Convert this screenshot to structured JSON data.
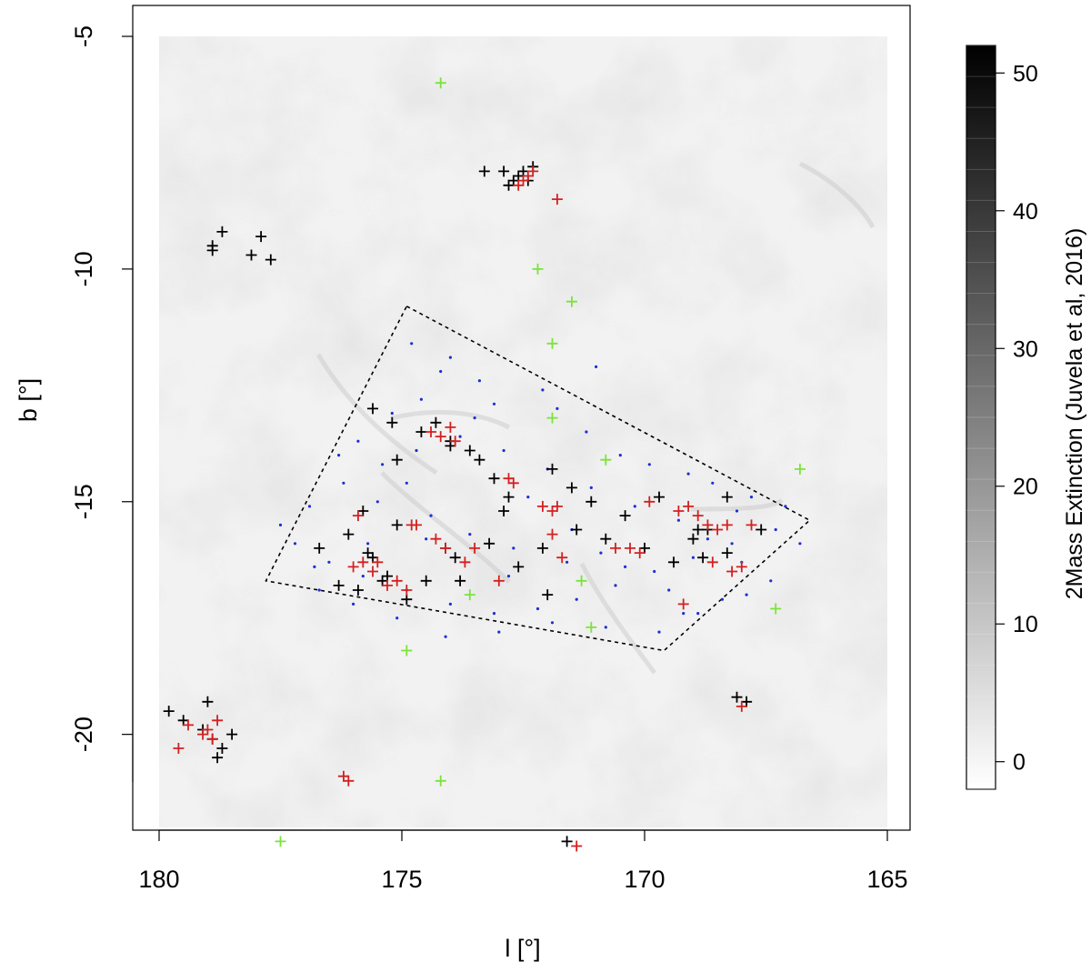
{
  "chart_data": {
    "type": "scatter",
    "title": "",
    "xlabel": "l [°]",
    "ylabel": "b [°]",
    "xlim": [
      180.0,
      165.0
    ],
    "ylim": [
      -22.0,
      -5.0
    ],
    "x_ticks": [
      "180",
      "175",
      "170",
      "165"
    ],
    "x_tick_values": [
      180,
      175,
      170,
      165
    ],
    "y_ticks": [
      "-5",
      "-10",
      "-15",
      "-20"
    ],
    "y_tick_values": [
      -5,
      -10,
      -15,
      -20
    ],
    "x_reversed": true,
    "grid": false,
    "background": "2MASS extinction map, greyscale",
    "colorbar": {
      "label": "2Mass Extinction (Juvela et al, 2016)",
      "ticks": [
        "0",
        "10",
        "20",
        "30",
        "40",
        "50"
      ],
      "tick_values": [
        0,
        10,
        20,
        30,
        40,
        50
      ],
      "range": [
        -2,
        52
      ],
      "colors": {
        "low": "#ffffff",
        "high": "#000000"
      }
    },
    "region": {
      "style": "dotted",
      "color": "#000000",
      "vertices": [
        [
          174.9,
          -10.8
        ],
        [
          166.6,
          -15.4
        ],
        [
          169.6,
          -18.2
        ],
        [
          177.8,
          -16.7
        ]
      ]
    },
    "series": [
      {
        "marker": "dot",
        "color": "#1f2fd1",
        "x": [
          174.8,
          174.0,
          173.4,
          174.6,
          175.2,
          175.9,
          172.1,
          171.8,
          171.2,
          170.5,
          169.9,
          169.1,
          168.6,
          167.8,
          167.1,
          167.3,
          168.2,
          169.0,
          169.8,
          170.6,
          171.4,
          172.2,
          173.1,
          174.0,
          174.9,
          175.8,
          176.5,
          177.2,
          177.5,
          176.9,
          176.2,
          175.4,
          174.7,
          173.8,
          172.9,
          172.0,
          171.1,
          170.2,
          169.3,
          168.7,
          168.0,
          167.4,
          166.8,
          167.9,
          168.9,
          169.7,
          170.8,
          171.9,
          173.0,
          174.1,
          175.1,
          176.0,
          176.7,
          175.5,
          174.4,
          173.6,
          172.7,
          171.6,
          170.4,
          169.5,
          168.4,
          174.2,
          173.1,
          172.4,
          171.5,
          170.9,
          174.9,
          176.3,
          175.7,
          172.8,
          169.2,
          168.1,
          173.5,
          171.0,
          176.8,
          174.5
        ],
        "y": [
          -11.6,
          -11.9,
          -12.4,
          -12.8,
          -13.1,
          -13.7,
          -12.6,
          -13.0,
          -13.5,
          -14.0,
          -14.2,
          -14.4,
          -14.6,
          -14.9,
          -15.1,
          -15.6,
          -15.9,
          -16.2,
          -16.5,
          -16.8,
          -17.1,
          -17.3,
          -17.4,
          -17.2,
          -16.9,
          -16.6,
          -16.3,
          -15.9,
          -15.5,
          -15.1,
          -14.6,
          -14.2,
          -13.9,
          -13.6,
          -13.9,
          -14.3,
          -14.7,
          -15.1,
          -15.4,
          -15.8,
          -16.3,
          -16.7,
          -15.9,
          -17.0,
          -17.4,
          -17.8,
          -17.7,
          -17.6,
          -17.8,
          -17.9,
          -17.5,
          -17.2,
          -16.9,
          -15.0,
          -15.3,
          -15.7,
          -16.0,
          -16.3,
          -16.4,
          -16.9,
          -17.1,
          -12.2,
          -12.9,
          -14.9,
          -15.6,
          -16.1,
          -14.6,
          -14.0,
          -15.9,
          -16.6,
          -17.4,
          -15.2,
          -13.2,
          -12.1,
          -16.4,
          -15.8
        ],
        "name": ""
      },
      {
        "marker": "plus",
        "color": "#000000",
        "x": [
          178.9,
          178.7,
          178.9,
          178.1,
          177.9,
          177.7,
          172.9,
          172.8,
          172.7,
          172.6,
          172.5,
          172.4,
          173.3,
          172.3,
          179.8,
          179.5,
          179.1,
          178.9,
          178.7,
          178.5,
          179.0,
          178.8,
          168.1,
          167.9,
          171.6,
          175.6,
          175.2,
          174.6,
          174.3,
          174.0,
          173.6,
          173.4,
          175.8,
          175.1,
          172.8,
          171.9,
          171.1,
          170.4,
          169.7,
          168.9,
          168.3,
          167.6,
          176.3,
          176.1,
          175.7,
          175.3,
          174.9,
          174.5,
          173.9,
          173.2,
          172.6,
          172.1,
          171.4,
          170.8,
          170.0,
          169.4,
          168.8,
          168.3,
          175.9,
          175.6,
          175.4,
          176.7,
          174.1,
          173.8,
          172.0,
          171.5,
          173.1,
          172.9,
          169.0,
          168.7,
          175.1,
          174.0
        ],
        "y": [
          -9.6,
          -9.2,
          -9.5,
          -9.7,
          -9.3,
          -9.8,
          -7.9,
          -8.2,
          -8.1,
          -8.0,
          -7.9,
          -8.1,
          -7.9,
          -7.8,
          -19.5,
          -19.7,
          -19.9,
          -20.1,
          -20.3,
          -20.0,
          -19.3,
          -20.5,
          -19.2,
          -19.3,
          -22.3,
          -13.0,
          -13.3,
          -13.5,
          -13.3,
          -13.7,
          -13.9,
          -14.1,
          -15.2,
          -15.5,
          -14.9,
          -14.3,
          -15.0,
          -15.3,
          -14.9,
          -15.6,
          -14.9,
          -15.6,
          -16.8,
          -15.7,
          -16.1,
          -16.6,
          -17.1,
          -16.7,
          -16.2,
          -15.9,
          -16.4,
          -16.0,
          -15.6,
          -15.8,
          -16.0,
          -16.3,
          -16.2,
          -16.1,
          -16.9,
          -16.2,
          -16.7,
          -16.0,
          -16.0,
          -16.7,
          -17.0,
          -14.7,
          -14.5,
          -15.2,
          -15.8,
          -15.6,
          -14.1,
          -13.8
        ],
        "name": ""
      },
      {
        "marker": "plus",
        "color": "#d42020",
        "x": [
          172.6,
          172.5,
          172.4,
          172.3,
          171.8,
          179.6,
          179.4,
          179.1,
          179.0,
          178.9,
          178.8,
          168.0,
          176.2,
          176.1,
          171.4,
          174.8,
          174.4,
          174.2,
          174.0,
          173.9,
          172.8,
          172.7,
          172.1,
          171.9,
          171.8,
          169.9,
          169.1,
          168.9,
          168.7,
          168.5,
          168.3,
          168.0,
          167.8,
          169.2,
          168.6,
          170.6,
          170.3,
          170.1,
          175.8,
          175.6,
          175.9,
          175.3,
          175.1,
          174.9,
          174.3,
          174.1,
          173.7,
          173.5,
          173.0,
          171.9,
          171.7,
          169.3,
          168.2,
          176.0,
          175.5,
          174.7
        ],
        "y": [
          -8.2,
          -8.1,
          -8.0,
          -7.9,
          -8.5,
          -20.3,
          -19.8,
          -20.0,
          -19.9,
          -20.1,
          -19.7,
          -19.4,
          -20.9,
          -21.0,
          -22.4,
          -15.5,
          -13.5,
          -13.6,
          -13.4,
          -13.7,
          -14.5,
          -14.6,
          -15.1,
          -15.2,
          -15.1,
          -15.0,
          -15.1,
          -15.3,
          -15.5,
          -15.6,
          -15.5,
          -16.4,
          -15.5,
          -17.2,
          -16.3,
          -16.0,
          -16.0,
          -16.1,
          -16.3,
          -16.5,
          -15.3,
          -16.8,
          -16.7,
          -16.9,
          -15.8,
          -16.0,
          -16.3,
          -16.0,
          -16.7,
          -15.7,
          -16.2,
          -15.2,
          -16.5,
          -16.4,
          -16.3,
          -15.5
        ],
        "name": ""
      },
      {
        "marker": "plus",
        "color": "#7be33a",
        "x": [
          174.2,
          172.2,
          171.5,
          171.9,
          171.9,
          170.8,
          166.8,
          173.6,
          171.3,
          171.1,
          167.3,
          174.9,
          174.2,
          177.5
        ],
        "y": [
          -6.0,
          -10.0,
          -10.7,
          -11.6,
          -13.2,
          -14.1,
          -14.3,
          -17.0,
          -16.7,
          -17.7,
          -17.3,
          -18.2,
          -21.0,
          -22.3
        ],
        "name": ""
      }
    ]
  }
}
